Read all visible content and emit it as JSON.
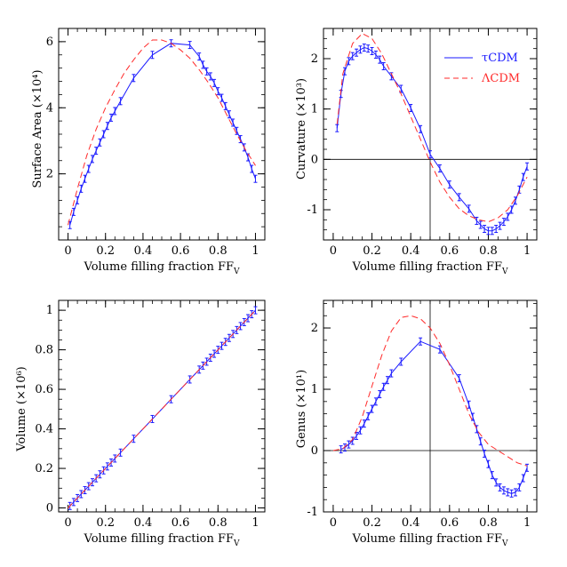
{
  "colors": {
    "tau": "#1a1aff",
    "lambda": "#ff2a2a",
    "axis": "#000000",
    "refline": "#000000"
  },
  "legend": {
    "tau_label": "τCDM",
    "lambda_label": "ΛCDM",
    "placement": "top-right of curvature panel"
  },
  "chart_data": [
    {
      "type": "line",
      "xlabel": "Volume filling fraction FF",
      "xlabel_sub": "V",
      "ylabel": "Surface Area (×10⁴)",
      "xlim": [
        -0.05,
        1.05
      ],
      "ylim": [
        0,
        6.4
      ],
      "xticks": [
        0,
        0.2,
        0.4,
        0.6,
        0.8,
        1
      ],
      "xtick_labels": [
        "0",
        "0.2",
        "0.4",
        "0.6",
        "0.8",
        "1"
      ],
      "yticks": [
        2,
        4,
        6
      ],
      "ytick_labels": [
        "2",
        "4",
        "6"
      ],
      "series": [
        {
          "name": "τCDM",
          "style": "solid",
          "errorbars": true,
          "x": [
            0.01,
            0.03,
            0.05,
            0.07,
            0.09,
            0.11,
            0.13,
            0.15,
            0.17,
            0.19,
            0.21,
            0.23,
            0.25,
            0.28,
            0.35,
            0.45,
            0.55,
            0.65,
            0.7,
            0.72,
            0.74,
            0.76,
            0.78,
            0.8,
            0.82,
            0.84,
            0.86,
            0.88,
            0.9,
            0.92,
            0.94,
            0.96,
            0.98,
            1.0
          ],
          "y": [
            0.45,
            0.85,
            1.2,
            1.55,
            1.85,
            2.15,
            2.45,
            2.7,
            2.95,
            3.2,
            3.45,
            3.7,
            3.9,
            4.2,
            4.9,
            5.6,
            5.95,
            5.9,
            5.55,
            5.3,
            5.1,
            4.95,
            4.75,
            4.5,
            4.3,
            4.05,
            3.8,
            3.55,
            3.3,
            3.05,
            2.8,
            2.5,
            2.15,
            1.85
          ]
        },
        {
          "name": "ΛCDM",
          "style": "dashed",
          "errorbars": false,
          "x": [
            0.0,
            0.05,
            0.1,
            0.15,
            0.2,
            0.25,
            0.3,
            0.35,
            0.4,
            0.45,
            0.5,
            0.55,
            0.6,
            0.65,
            0.7,
            0.75,
            0.8,
            0.85,
            0.9,
            0.95,
            1.0
          ],
          "y": [
            0.45,
            1.55,
            2.55,
            3.35,
            4.0,
            4.55,
            5.05,
            5.45,
            5.8,
            6.05,
            6.05,
            5.95,
            5.75,
            5.5,
            5.15,
            4.75,
            4.3,
            3.75,
            3.2,
            2.7,
            2.25
          ]
        }
      ]
    },
    {
      "type": "line",
      "xlabel": "Volume filling fraction FF",
      "xlabel_sub": "V",
      "ylabel": "Curvature (×10³)",
      "xlim": [
        -0.05,
        1.05
      ],
      "ylim": [
        -1.6,
        2.6
      ],
      "xticks": [
        0,
        0.2,
        0.4,
        0.6,
        0.8,
        1
      ],
      "xtick_labels": [
        "0",
        "0.2",
        "0.4",
        "0.6",
        "0.8",
        "1"
      ],
      "yticks": [
        -1,
        0,
        1,
        2
      ],
      "ytick_labels": [
        "-1",
        "0",
        "1",
        "2"
      ],
      "reference_lines": {
        "y": 0,
        "x": 0.5
      },
      "series": [
        {
          "name": "τCDM",
          "style": "solid",
          "errorbars": true,
          "x": [
            0.02,
            0.04,
            0.06,
            0.08,
            0.1,
            0.12,
            0.14,
            0.16,
            0.18,
            0.2,
            0.22,
            0.24,
            0.26,
            0.3,
            0.35,
            0.4,
            0.45,
            0.5,
            0.55,
            0.6,
            0.65,
            0.7,
            0.74,
            0.76,
            0.78,
            0.8,
            0.82,
            0.84,
            0.86,
            0.88,
            0.9,
            0.92,
            0.94,
            0.96,
            0.98,
            1.0
          ],
          "y": [
            0.62,
            1.3,
            1.75,
            1.95,
            2.05,
            2.12,
            2.18,
            2.22,
            2.2,
            2.15,
            2.08,
            1.98,
            1.85,
            1.65,
            1.4,
            1.02,
            0.6,
            0.1,
            -0.18,
            -0.5,
            -0.75,
            -0.98,
            -1.22,
            -1.3,
            -1.38,
            -1.42,
            -1.42,
            -1.38,
            -1.32,
            -1.24,
            -1.14,
            -1.0,
            -0.82,
            -0.6,
            -0.35,
            -0.14
          ]
        },
        {
          "name": "ΛCDM",
          "style": "dashed",
          "errorbars": false,
          "x": [
            0.02,
            0.05,
            0.1,
            0.15,
            0.2,
            0.25,
            0.3,
            0.35,
            0.4,
            0.45,
            0.5,
            0.55,
            0.6,
            0.65,
            0.7,
            0.75,
            0.8,
            0.85,
            0.9,
            0.95,
            1.0
          ],
          "y": [
            0.7,
            1.7,
            2.3,
            2.5,
            2.4,
            2.1,
            1.7,
            1.3,
            0.85,
            0.4,
            -0.05,
            -0.45,
            -0.75,
            -0.98,
            -1.12,
            -1.2,
            -1.24,
            -1.16,
            -1.0,
            -0.72,
            -0.35
          ]
        }
      ]
    },
    {
      "type": "line",
      "xlabel": "Volume filling fraction FF",
      "xlabel_sub": "V",
      "ylabel": "Volume (×10⁶)",
      "xlim": [
        -0.05,
        1.05
      ],
      "ylim": [
        -0.02,
        1.05
      ],
      "xticks": [
        0,
        0.2,
        0.4,
        0.6,
        0.8,
        1
      ],
      "xtick_labels": [
        "0",
        "0.2",
        "0.4",
        "0.6",
        "0.8",
        "1"
      ],
      "yticks": [
        0,
        0.2,
        0.4,
        0.6,
        0.8,
        1
      ],
      "ytick_labels": [
        "0",
        "0.2",
        "0.4",
        "0.6",
        "0.8",
        "1"
      ],
      "series": [
        {
          "name": "τCDM",
          "style": "solid",
          "errorbars": true,
          "x": [
            0.01,
            0.03,
            0.05,
            0.07,
            0.09,
            0.11,
            0.13,
            0.15,
            0.17,
            0.19,
            0.21,
            0.23,
            0.25,
            0.28,
            0.35,
            0.45,
            0.55,
            0.65,
            0.7,
            0.72,
            0.74,
            0.76,
            0.78,
            0.8,
            0.82,
            0.84,
            0.86,
            0.88,
            0.9,
            0.92,
            0.94,
            0.96,
            0.98,
            1.0
          ],
          "y": [
            0.01,
            0.03,
            0.05,
            0.07,
            0.09,
            0.11,
            0.13,
            0.15,
            0.17,
            0.19,
            0.21,
            0.23,
            0.25,
            0.28,
            0.35,
            0.45,
            0.55,
            0.65,
            0.7,
            0.72,
            0.74,
            0.76,
            0.78,
            0.8,
            0.82,
            0.84,
            0.86,
            0.88,
            0.9,
            0.92,
            0.94,
            0.96,
            0.98,
            1.0
          ]
        },
        {
          "name": "ΛCDM",
          "style": "dashed",
          "errorbars": false,
          "x": [
            0.0,
            1.0
          ],
          "y": [
            0.0,
            1.0
          ]
        }
      ]
    },
    {
      "type": "line",
      "xlabel": "Volume filling fraction FF",
      "xlabel_sub": "V",
      "ylabel": "Genus (×10¹)",
      "xlim": [
        -0.05,
        1.05
      ],
      "ylim": [
        -1.0,
        2.45
      ],
      "xticks": [
        0,
        0.2,
        0.4,
        0.6,
        0.8,
        1
      ],
      "xtick_labels": [
        "0",
        "0.2",
        "0.4",
        "0.6",
        "0.8",
        "1"
      ],
      "yticks": [
        -1,
        0,
        1,
        2
      ],
      "ytick_labels": [
        "-1",
        "0",
        "1",
        "2"
      ],
      "reference_lines": {
        "y": 0,
        "x": 0.5
      },
      "series": [
        {
          "name": "τCDM",
          "style": "solid",
          "errorbars": true,
          "x": [
            0.04,
            0.06,
            0.08,
            0.1,
            0.12,
            0.14,
            0.16,
            0.18,
            0.2,
            0.22,
            0.24,
            0.26,
            0.28,
            0.3,
            0.35,
            0.45,
            0.55,
            0.65,
            0.7,
            0.72,
            0.74,
            0.76,
            0.78,
            0.8,
            0.82,
            0.84,
            0.86,
            0.88,
            0.9,
            0.92,
            0.94,
            0.96,
            0.98,
            1.0
          ],
          "y": [
            0.02,
            0.05,
            0.1,
            0.16,
            0.24,
            0.33,
            0.44,
            0.56,
            0.68,
            0.8,
            0.92,
            1.04,
            1.15,
            1.26,
            1.45,
            1.78,
            1.65,
            1.18,
            0.75,
            0.55,
            0.35,
            0.15,
            -0.05,
            -0.22,
            -0.4,
            -0.52,
            -0.6,
            -0.65,
            -0.68,
            -0.7,
            -0.68,
            -0.6,
            -0.45,
            -0.28
          ]
        },
        {
          "name": "ΛCDM",
          "style": "dashed",
          "errorbars": false,
          "x": [
            0.0,
            0.05,
            0.1,
            0.15,
            0.2,
            0.25,
            0.3,
            0.35,
            0.4,
            0.45,
            0.5,
            0.55,
            0.6,
            0.65,
            0.7,
            0.75,
            0.8,
            0.85,
            0.9,
            0.95,
            1.0
          ],
          "y": [
            0.0,
            0.03,
            0.18,
            0.55,
            1.05,
            1.55,
            1.95,
            2.17,
            2.2,
            2.15,
            2.0,
            1.75,
            1.4,
            1.0,
            0.6,
            0.3,
            0.1,
            0.0,
            -0.1,
            -0.2,
            -0.25
          ]
        }
      ]
    }
  ]
}
